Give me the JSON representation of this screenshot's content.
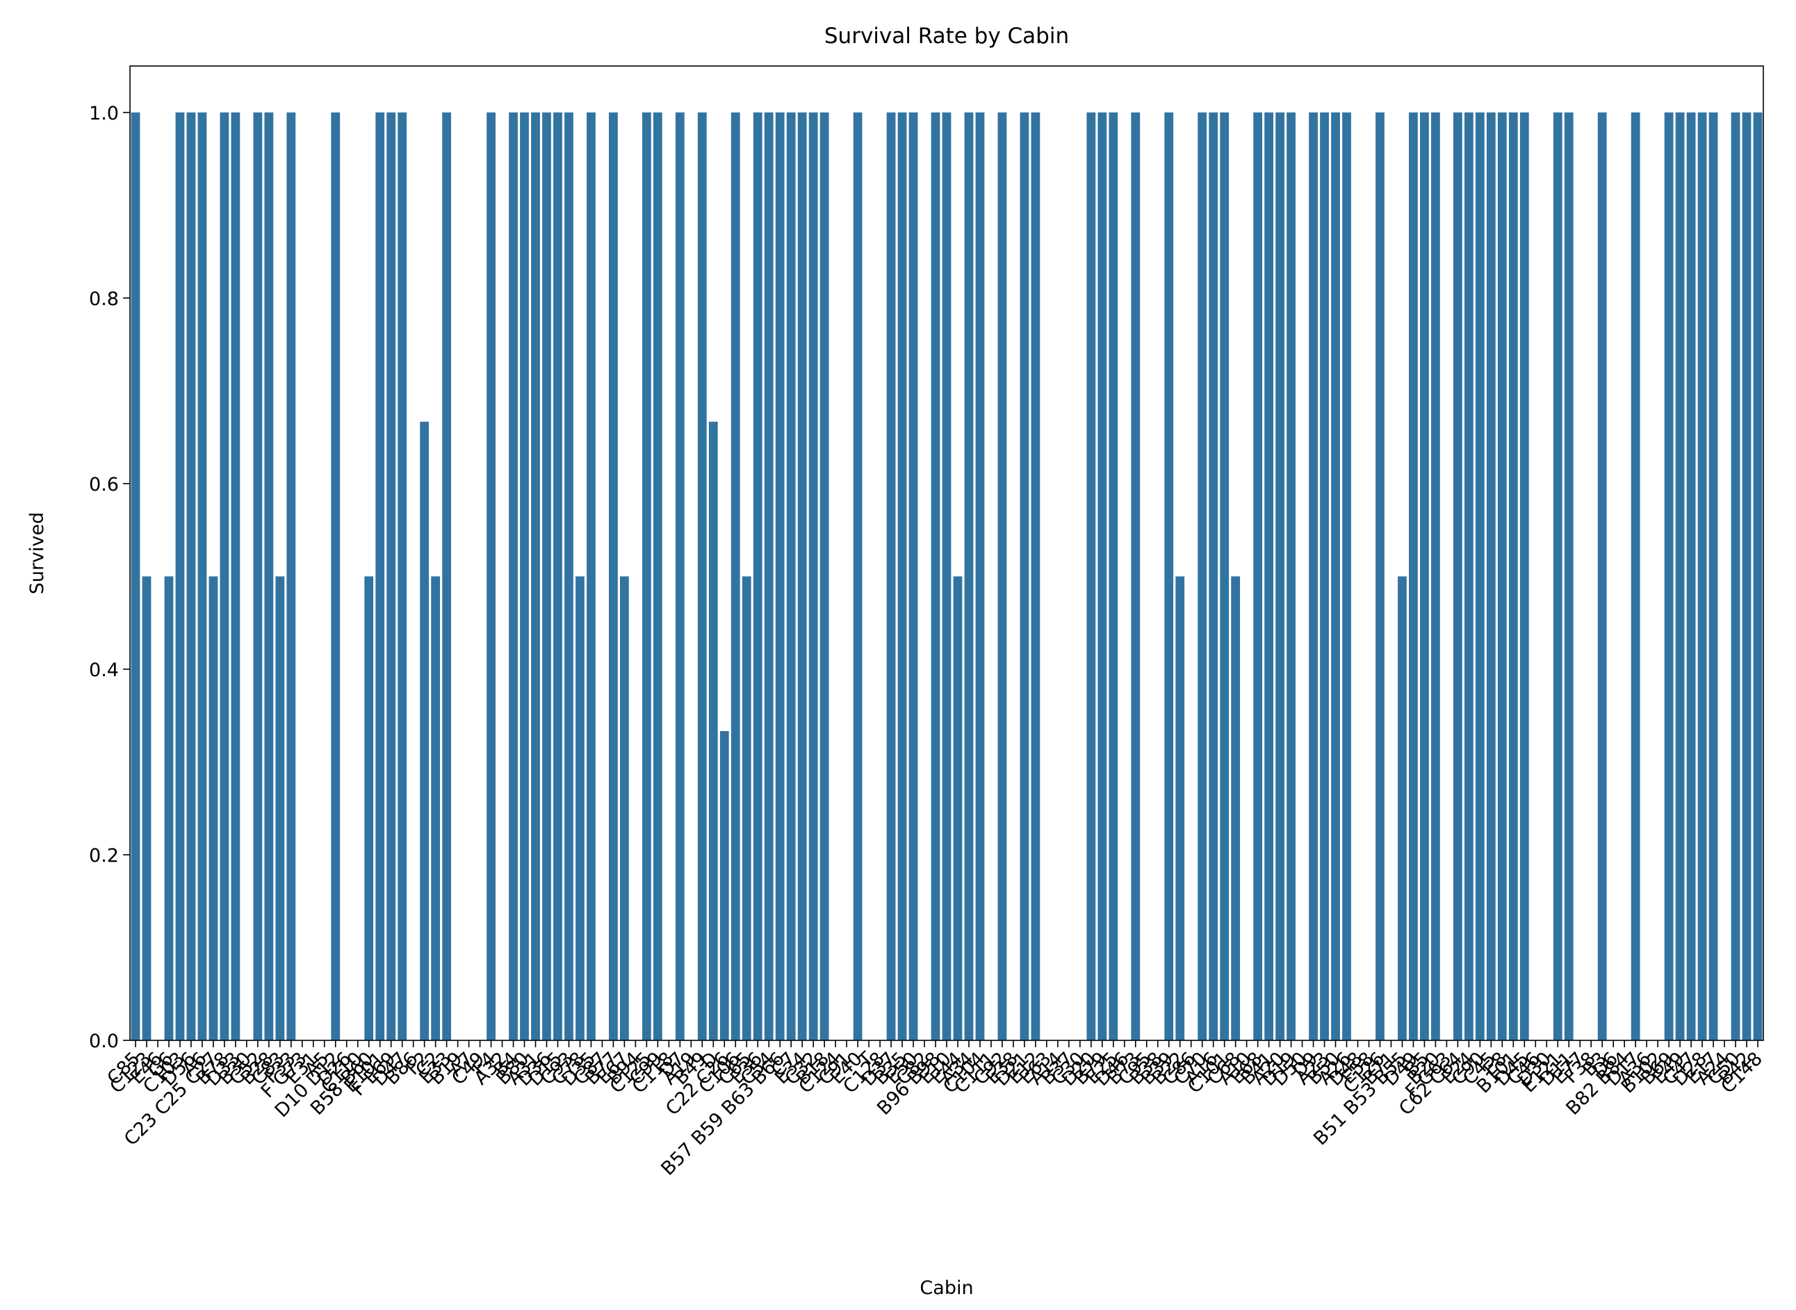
{
  "chart_data": {
    "type": "bar",
    "title": "Survival Rate by Cabin",
    "x_label": "Cabin",
    "y_label": "Survived",
    "categories": [
      "C85",
      "C123",
      "E46",
      "G6",
      "C103",
      "D56",
      "A6",
      "C23 C25 C27",
      "B78",
      "D33",
      "B30",
      "C52",
      "B28",
      "C83",
      "F33",
      "F G73",
      "E31",
      "A5",
      "D10 D12",
      "D26",
      "C110",
      "B58 B60",
      "E101",
      "F E69",
      "D47",
      "B86",
      "F2",
      "C2",
      "E33",
      "B19",
      "A7",
      "C49",
      "F4",
      "A32",
      "B4",
      "B80",
      "A31",
      "D36",
      "D15",
      "C93",
      "C78",
      "D35",
      "C87",
      "B77",
      "E67",
      "B94",
      "C125",
      "C99",
      "C118",
      "D7",
      "A19",
      "B49",
      "D",
      "C22 C26",
      "C106",
      "C65",
      "E36",
      "C54",
      "B57 B59 B63 B66",
      "C7",
      "E34",
      "C32",
      "B18",
      "C124",
      "C91",
      "E40",
      "T",
      "C128",
      "D37",
      "B35",
      "E50",
      "C82",
      "B96 B98",
      "E10",
      "E44",
      "A34",
      "C104",
      "C111",
      "C92",
      "E38",
      "D21",
      "E12",
      "E63",
      "A14",
      "B37",
      "C30",
      "D20",
      "B79",
      "E25",
      "D46",
      "B73",
      "C95",
      "B38",
      "B39",
      "B22",
      "C86",
      "C70",
      "A16",
      "C101",
      "C68",
      "A10",
      "E68",
      "B41",
      "A20",
      "D19",
      "D50",
      "D9",
      "A23",
      "B50",
      "A26",
      "D48",
      "E58",
      "C126",
      "B71",
      "B51 B53 B55",
      "D49",
      "B5",
      "B20",
      "F G63",
      "C62 C64",
      "E24",
      "C90",
      "C45",
      "E8",
      "B101",
      "D45",
      "C46",
      "D30",
      "E121",
      "D11",
      "E77",
      "F38",
      "B3",
      "D6",
      "B82 B84",
      "D17",
      "A36",
      "B102",
      "B69",
      "E49",
      "C47",
      "D28",
      "E17",
      "A24",
      "C50",
      "B42",
      "C148"
    ],
    "values": [
      1,
      0.5,
      0,
      0.5,
      1,
      1,
      1,
      0.5,
      1,
      1,
      0,
      1,
      1,
      0.5,
      1,
      0,
      0,
      0,
      1,
      0,
      0,
      0.5,
      1,
      1,
      1,
      0,
      0.6667,
      0.5,
      1,
      0,
      0,
      0,
      1,
      0,
      1,
      1,
      1,
      1,
      1,
      1,
      0.5,
      1,
      0,
      1,
      0.5,
      0,
      1,
      1,
      0,
      1,
      0,
      1,
      0.6667,
      0.3333,
      1,
      0.5,
      1,
      1,
      1,
      1,
      1,
      1,
      1,
      0,
      0,
      1,
      0,
      0,
      1,
      1,
      1,
      0,
      1,
      1,
      0.5,
      1,
      1,
      0,
      1,
      0,
      1,
      1,
      0,
      0,
      0,
      0,
      1,
      1,
      1,
      0,
      1,
      0,
      0,
      1,
      0.5,
      0,
      1,
      1,
      1,
      0.5,
      0,
      1,
      1,
      1,
      1,
      0,
      1,
      1,
      1,
      1,
      0,
      0,
      1,
      0,
      0.5,
      1,
      1,
      1,
      0,
      1,
      1,
      1,
      1,
      1,
      1,
      1,
      0,
      0,
      1,
      1,
      0,
      0,
      1,
      0,
      0,
      1,
      0,
      0,
      1,
      1,
      1,
      1,
      1,
      0,
      1,
      1,
      1
    ],
    "color": "#3274a1",
    "ylim": [
      0,
      1.05
    ],
    "yticks": [
      {
        "value": 0,
        "label": "0.0"
      },
      0.2,
      0.4,
      0.6,
      0.8,
      {
        "value": 1,
        "label": "1.0"
      }
    ]
  }
}
